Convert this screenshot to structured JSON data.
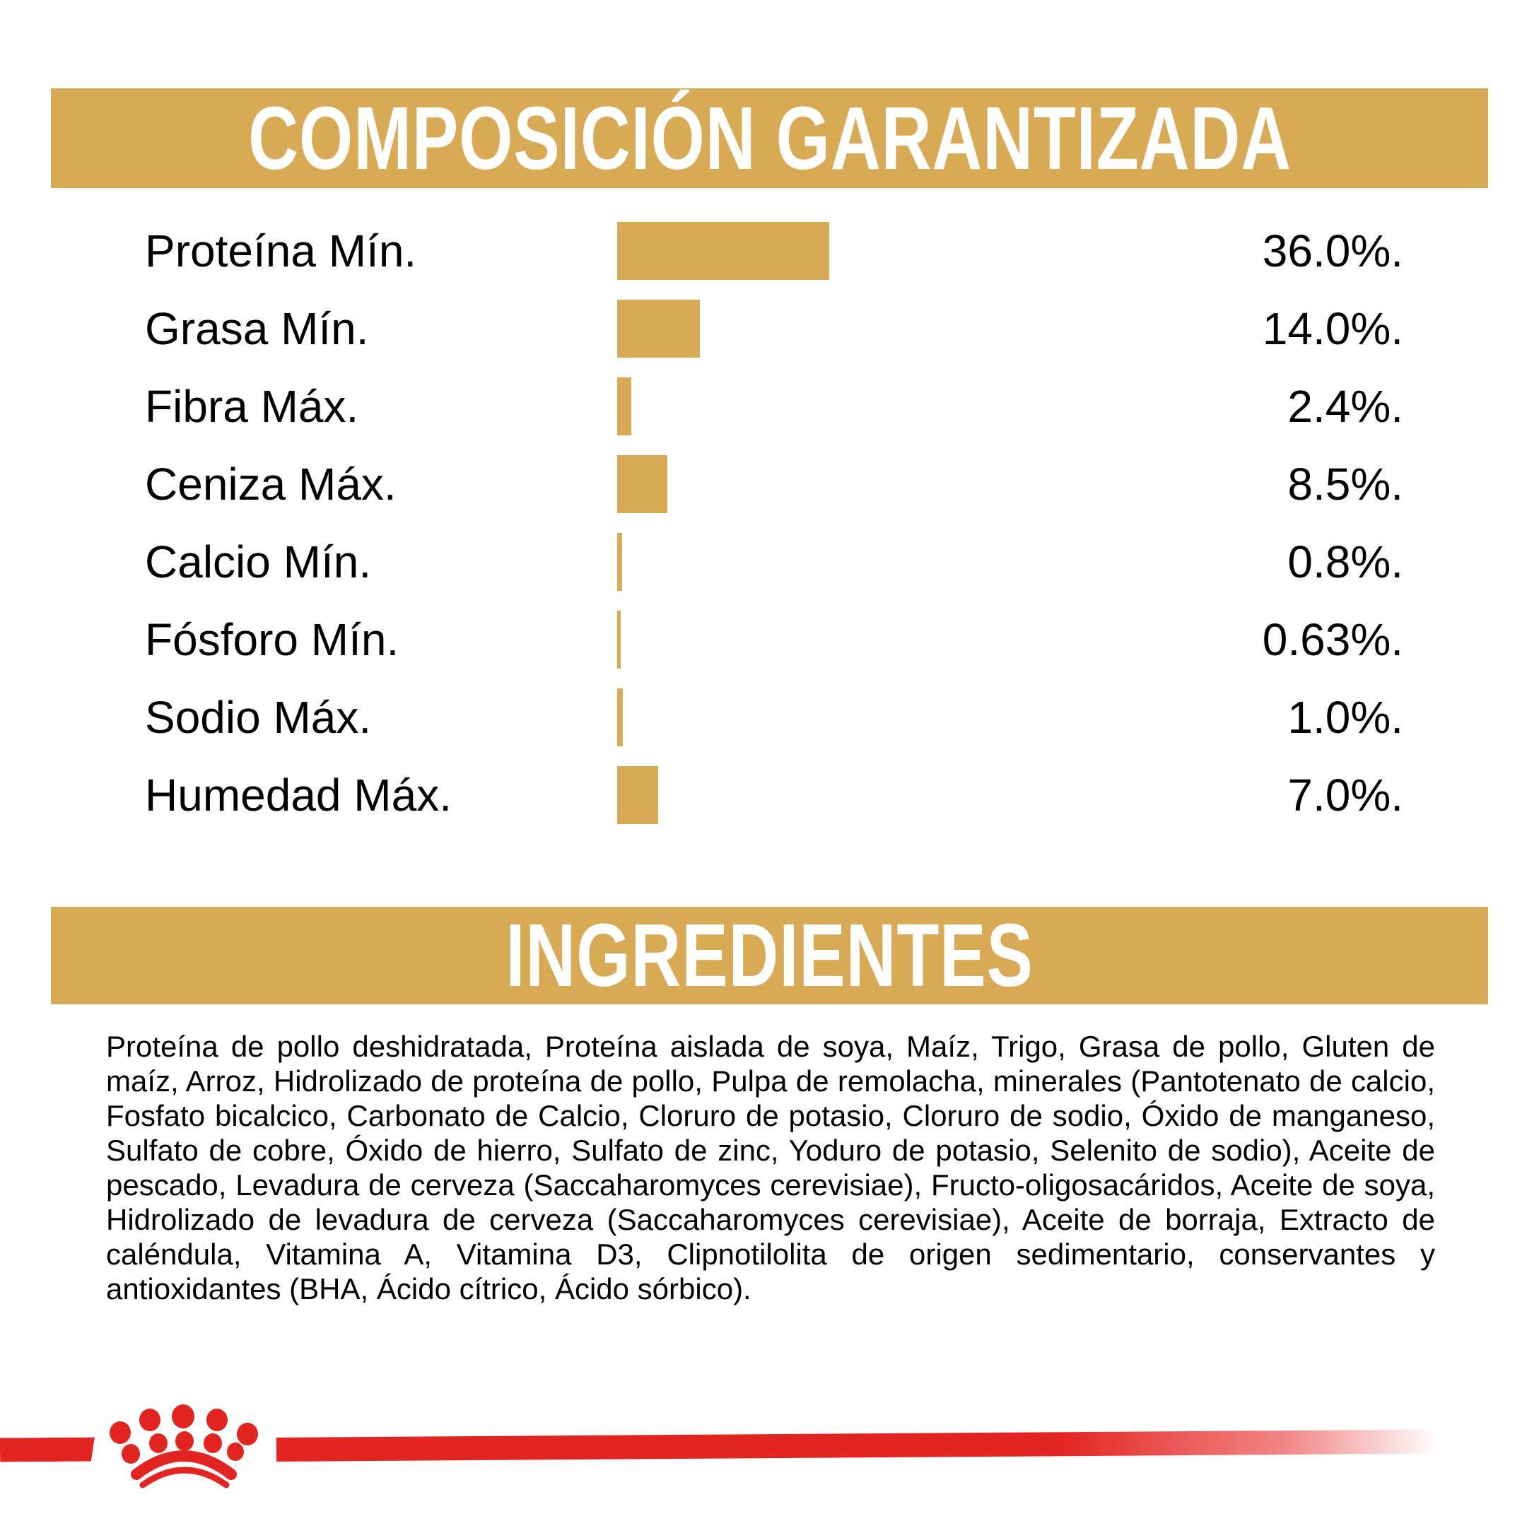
{
  "composition": {
    "title": "COMPOSICIÓN GARANTIZADA"
  },
  "chart_data": {
    "type": "bar",
    "orientation": "horizontal",
    "title": "COMPOSICIÓN GARANTIZADA",
    "categories": [
      "Proteína Mín.",
      "Grasa Mín.",
      "Fibra Máx.",
      "Ceniza Máx.",
      "Calcio Mín.",
      "Fósforo Mín.",
      "Sodio Máx.",
      "Humedad Máx."
    ],
    "values": [
      36.0,
      14.0,
      2.4,
      8.5,
      0.8,
      0.63,
      1.0,
      7.0
    ],
    "value_labels": [
      "36.0%.",
      "14.0%.",
      "2.4%.",
      "8.5%.",
      "0.8%.",
      "0.63%.",
      "1.0%.",
      "7.0%."
    ],
    "unit": "%",
    "bar_color": "#d9aa55",
    "xlim": [
      0,
      36
    ],
    "grid": false,
    "legend": false
  },
  "ingredients": {
    "title": "INGREDIENTES",
    "text": "Proteína de pollo deshidratada, Proteína aislada de soya, Maíz, Trigo, Grasa de pollo, Gluten de maíz, Arroz, Hidrolizado de proteína de pollo, Pulpa de remolacha, minerales (Pantotenato de calcio, Fosfato bicalcico, Carbonato de Calcio, Cloruro de potasio, Cloruro de sodio, Óxido de manganeso, Sulfato de cobre, Óxido de hierro, Sulfato de zinc, Yoduro de potasio, Selenito de sodio), Aceite de pescado, Levadura de cerveza (Saccaharomyces cerevisiae), Fructo-oligosacáridos, Aceite de soya, Hidrolizado de levadura de cerveza (Saccaharomyces cerevisiae), Aceite de borraja, Extracto de caléndula, Vitamina A, Vitamina D3, Clipnotilolita de origen sedimentario, conservantes y antioxidantes (BHA, Ácido cítrico, Ácido sórbico)."
  },
  "footer": {
    "logo_icon": "royal-canin-crown-icon"
  },
  "colors": {
    "gold": "#d9aa55",
    "red": "#e32522",
    "text": "#000000",
    "banner_text": "#ffffff",
    "background": "#ffffff"
  }
}
